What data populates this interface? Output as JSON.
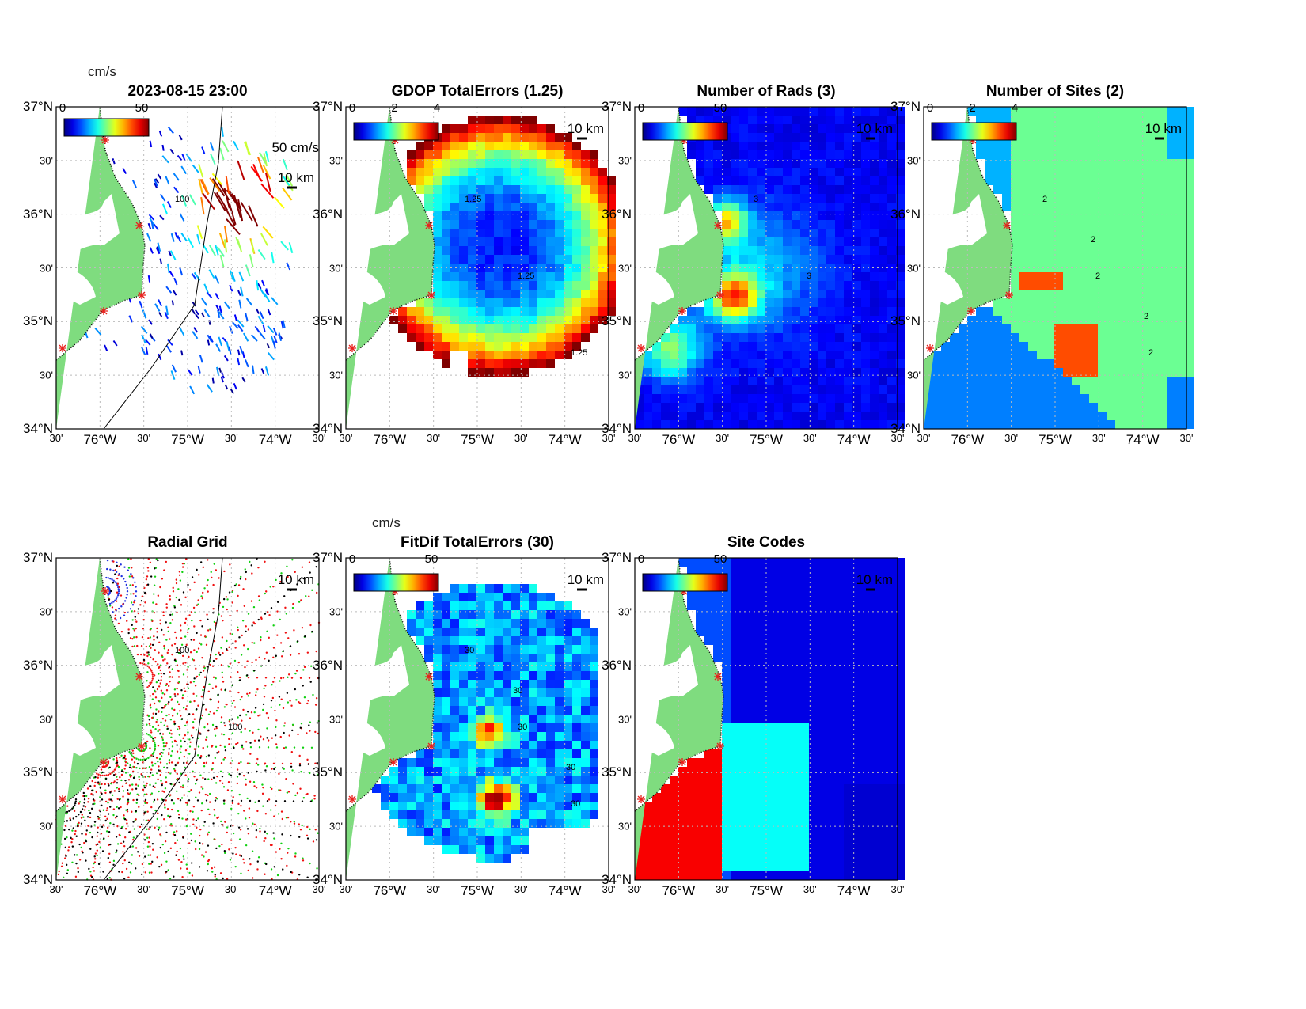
{
  "figure_time": "2023-08-15 23:00",
  "colors": {
    "land": "#7fdc7f",
    "site_marker": "#e8201c",
    "frame": "#000000"
  },
  "axes": {
    "lat_ticks": [
      "37°N",
      "30'",
      "36°N",
      "30'",
      "35°N",
      "30'",
      "34°N"
    ],
    "lon_ticks": [
      "30'",
      "76°W",
      "30'",
      "75°W",
      "30'",
      "74°W",
      "30'"
    ],
    "lat_range": [
      34,
      37
    ],
    "lon_range": [
      -76.5,
      -73.5
    ]
  },
  "chart_data": [
    {
      "type": "heatmap",
      "id": "vectors",
      "title": "2023-08-15 23:00",
      "colorbar_unit": "cm/s",
      "colorbar_labels": [
        "0",
        "50"
      ],
      "scale_labels": [
        "50 cm/s",
        "10 km"
      ],
      "contour_labels": [
        "100"
      ],
      "colormap": "jet"
    },
    {
      "type": "heatmap",
      "id": "gdop",
      "title": "GDOP TotalErrors (1.25)",
      "colorbar_labels": [
        "0",
        "2",
        "4"
      ],
      "scale_labels": [
        "10 km"
      ],
      "contour_labels": [
        "1.25",
        "1.25",
        "1.25"
      ],
      "colormap": "jet"
    },
    {
      "type": "heatmap",
      "id": "rads",
      "title": "Number of Rads (3)",
      "colorbar_labels": [
        "0",
        "50"
      ],
      "scale_labels": [
        "10 km"
      ],
      "contour_labels": [
        "3",
        "3"
      ],
      "colormap": "jet"
    },
    {
      "type": "heatmap",
      "id": "sites",
      "title": "Number of Sites (2)",
      "colorbar_labels": [
        "0",
        "2",
        "4"
      ],
      "scale_labels": [
        "10 km"
      ],
      "contour_labels": [
        "2",
        "2",
        "2",
        "2",
        "2"
      ],
      "colormap": "jet"
    },
    {
      "type": "scatter",
      "id": "radial",
      "title": "Radial Grid",
      "scale_labels": [
        "10 km"
      ],
      "contour_labels": [
        "100",
        "100"
      ]
    },
    {
      "type": "heatmap",
      "id": "fitdif",
      "title": "FitDif TotalErrors (30)",
      "colorbar_unit": "cm/s",
      "colorbar_labels": [
        "0",
        "50"
      ],
      "scale_labels": [
        "10 km"
      ],
      "contour_labels": [
        "30",
        "30",
        "30",
        "30",
        "30"
      ],
      "colormap": "jet"
    },
    {
      "type": "heatmap",
      "id": "sitecodes",
      "title": "Site Codes",
      "colorbar_labels": [
        "0",
        "50"
      ],
      "scale_labels": [
        "10 km"
      ],
      "colormap": "jet"
    }
  ]
}
